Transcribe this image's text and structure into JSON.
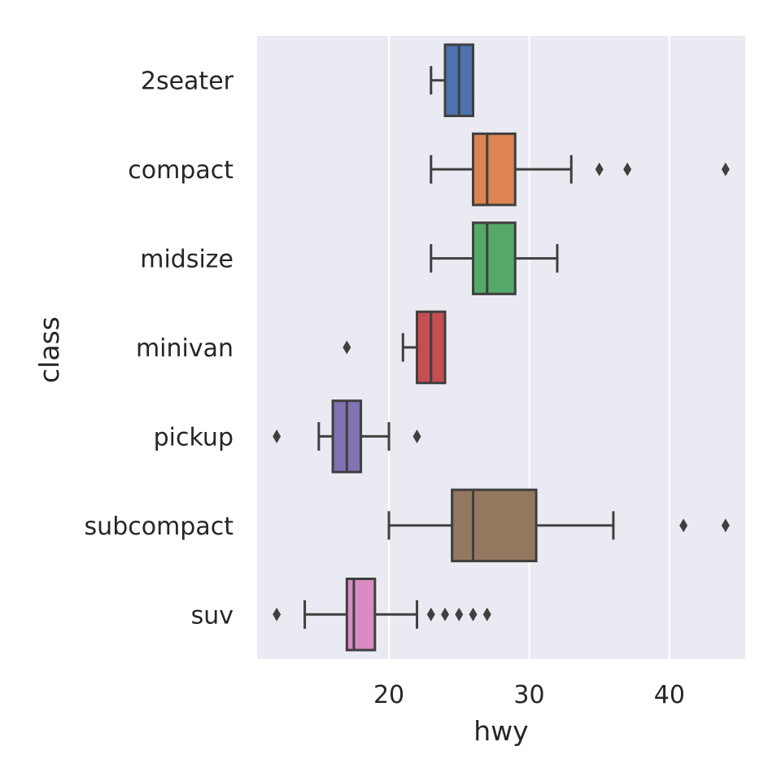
{
  "chart_data": {
    "type": "box",
    "orientation": "horizontal",
    "title": "",
    "xlabel": "hwy",
    "ylabel": "class",
    "xlim": [
      10.6,
      45.4
    ],
    "xticks": [
      20,
      30,
      40
    ],
    "grid": true,
    "legend": "none",
    "background": "#eaeaf2",
    "categories": [
      "2seater",
      "compact",
      "midsize",
      "minivan",
      "pickup",
      "subcompact",
      "suv"
    ],
    "boxes": [
      {
        "category": "2seater",
        "color": "#4c72b0",
        "whisker_low": 23,
        "q1": 24,
        "median": 25,
        "q3": 26,
        "whisker_high": 26,
        "outliers": []
      },
      {
        "category": "compact",
        "color": "#dd8452",
        "whisker_low": 23,
        "q1": 26,
        "median": 27,
        "q3": 29,
        "whisker_high": 33,
        "outliers": [
          35,
          37,
          44
        ]
      },
      {
        "category": "midsize",
        "color": "#55a868",
        "whisker_low": 23,
        "q1": 26,
        "median": 27,
        "q3": 29,
        "whisker_high": 32,
        "outliers": []
      },
      {
        "category": "minivan",
        "color": "#c44e52",
        "whisker_low": 21,
        "q1": 22,
        "median": 23,
        "q3": 24,
        "whisker_high": 24,
        "outliers": [
          17
        ]
      },
      {
        "category": "pickup",
        "color": "#8172b3",
        "whisker_low": 15,
        "q1": 16,
        "median": 17,
        "q3": 18,
        "whisker_high": 20,
        "outliers": [
          12,
          22
        ]
      },
      {
        "category": "subcompact",
        "color": "#937860",
        "whisker_low": 20,
        "q1": 24.5,
        "median": 26,
        "q3": 30.5,
        "whisker_high": 36,
        "outliers": [
          41,
          44
        ]
      },
      {
        "category": "suv",
        "color": "#da8bc3",
        "whisker_low": 14,
        "q1": 17,
        "median": 17.5,
        "q3": 19,
        "whisker_high": 22,
        "outliers": [
          12,
          23,
          24,
          25,
          26,
          27
        ]
      }
    ]
  }
}
